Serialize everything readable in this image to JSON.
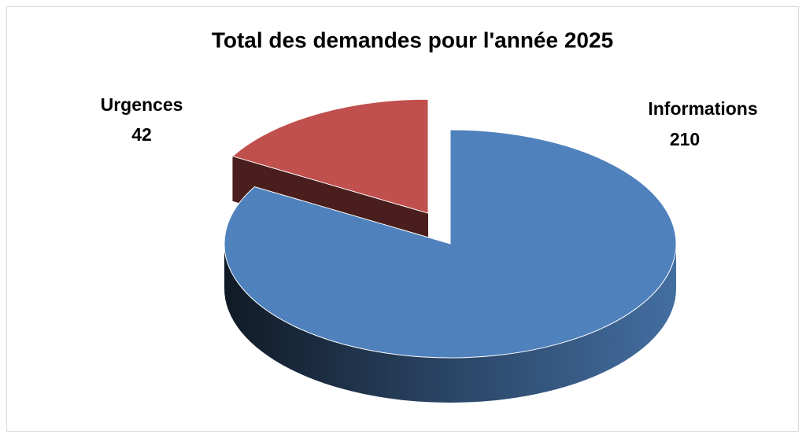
{
  "chart_data": {
    "type": "pie3d",
    "title": "Total des demandes pour l'année 2025",
    "categories": [
      "Urgences",
      "Informations"
    ],
    "values": [
      42,
      210
    ],
    "colors": [
      "#c0504d",
      "#4f81bd"
    ]
  }
}
